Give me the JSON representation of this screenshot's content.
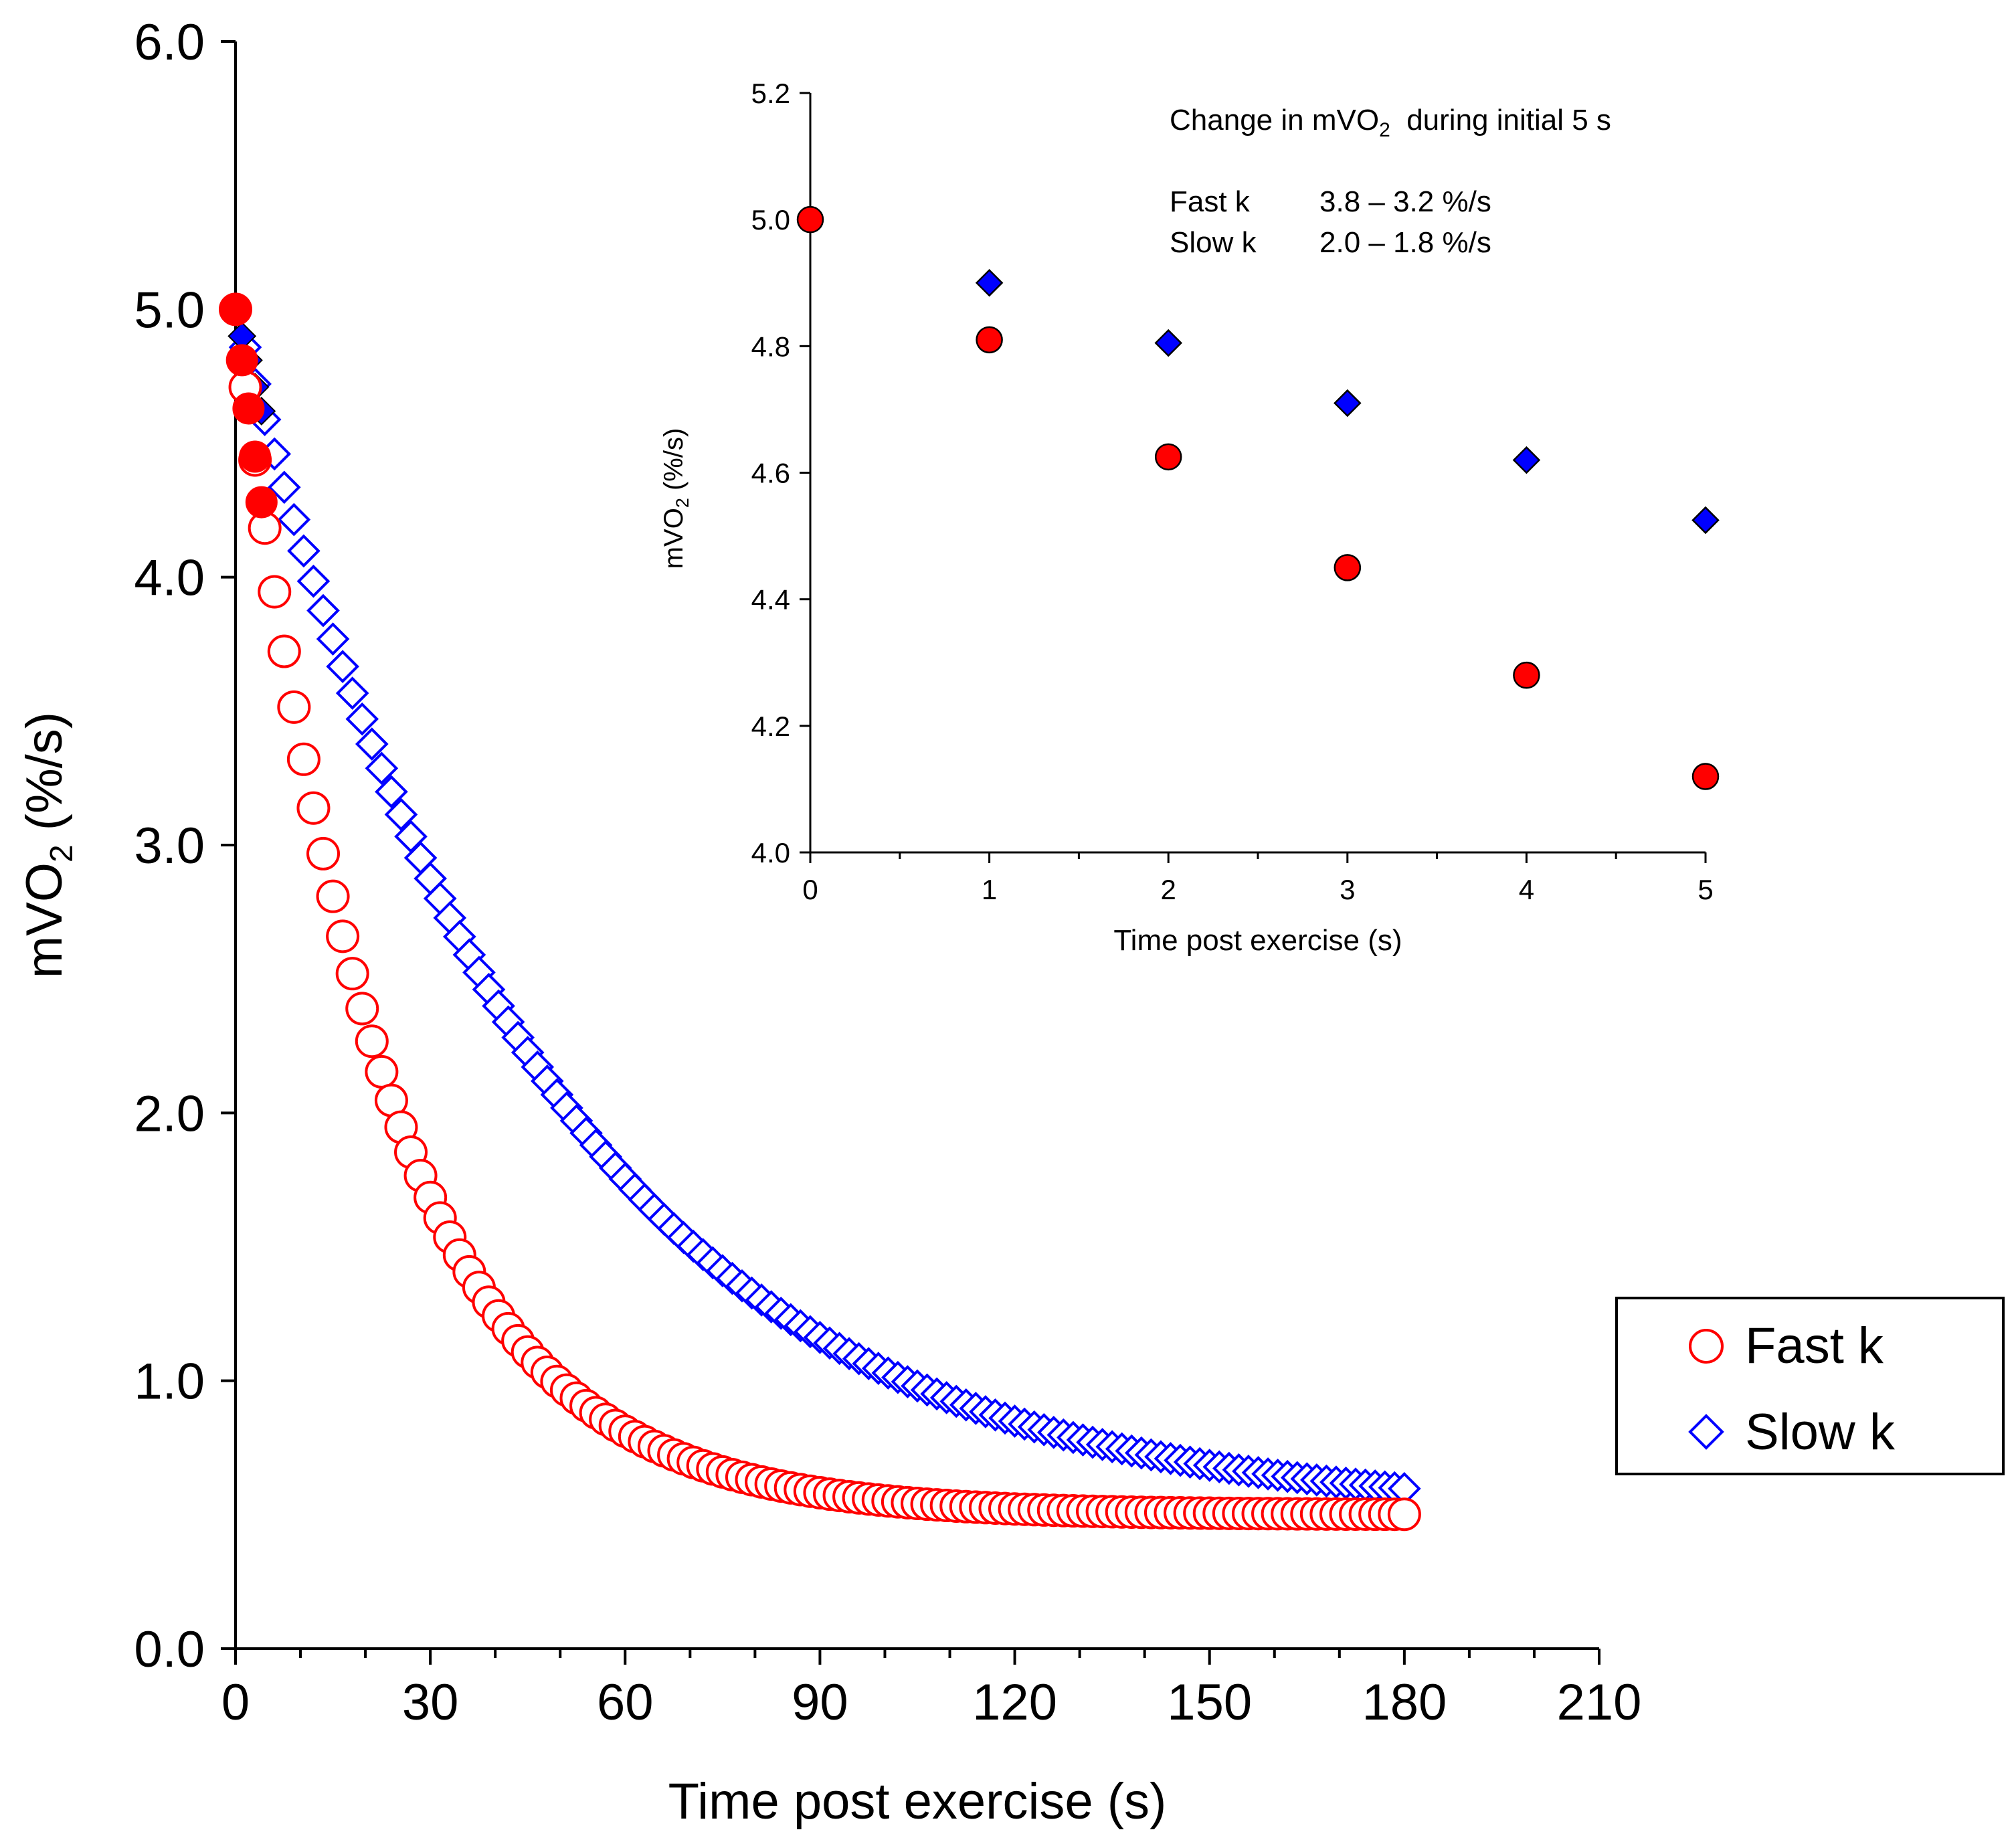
{
  "chart_data": [
    {
      "type": "scatter",
      "id": "main",
      "xlabel": "Time post exercise (s)",
      "ylabel": {
        "base": "mVO",
        "sub": "2",
        "tail": " (%/s)"
      },
      "xlim": [
        0,
        210
      ],
      "ylim": [
        0,
        6
      ],
      "xticks": [
        0,
        30,
        60,
        90,
        120,
        150,
        180,
        210
      ],
      "xtick_labels": [
        "0",
        "30",
        "60",
        "90",
        "120",
        "150",
        "180",
        "210"
      ],
      "yticks": [
        0,
        1,
        2,
        3,
        4,
        5,
        6
      ],
      "ytick_labels": [
        "0.0",
        "1.0",
        "2.0",
        "3.0",
        "4.0",
        "5.0",
        "6.0"
      ],
      "x_minor_step": 10,
      "series": [
        {
          "name": "Fast k",
          "marker": "circle",
          "color": "#ff0000",
          "model": {
            "baseline": 0.5,
            "amplitude": 4.5,
            "k_per_s": 0.0445
          },
          "x": {
            "start": 0,
            "end": 180,
            "step": 1.5
          },
          "filled_initial": [
            [
              0,
              5.0
            ],
            [
              1,
              4.81
            ],
            [
              2,
              4.63
            ],
            [
              3,
              4.45
            ],
            [
              4,
              4.28
            ]
          ]
        },
        {
          "name": "Slow k",
          "marker": "diamond",
          "color": "#0000ff",
          "model": {
            "baseline": 0.5,
            "amplitude": 4.5,
            "k_per_s": 0.0213
          },
          "x": {
            "start": 0,
            "end": 180,
            "step": 1.5
          },
          "filled_initial": [
            [
              0,
              5.0
            ],
            [
              1,
              4.9
            ],
            [
              2,
              4.81
            ],
            [
              3,
              4.71
            ],
            [
              4,
              4.62
            ]
          ]
        }
      ],
      "legend": {
        "position": "right",
        "entries": [
          "Fast k",
          "Slow k"
        ]
      }
    },
    {
      "type": "scatter",
      "id": "inset",
      "title": {
        "base": "Change in mVO",
        "sub": "2",
        "tail": "  during initial 5 s"
      },
      "annotations": [
        {
          "label": "Fast k",
          "value": "3.8 – 3.2 %/s"
        },
        {
          "label": "Slow k",
          "value": "2.0 – 1.8 %/s"
        }
      ],
      "xlabel": "Time post exercise (s)",
      "ylabel": {
        "base": "mVO",
        "sub": "2",
        "tail": " (%/s)"
      },
      "xlim": [
        0,
        5
      ],
      "ylim": [
        4.0,
        5.2
      ],
      "xticks": [
        0,
        1,
        2,
        3,
        4,
        5
      ],
      "xtick_labels": [
        "0",
        "1",
        "2",
        "3",
        "4",
        "5"
      ],
      "yticks": [
        4.0,
        4.2,
        4.4,
        4.6,
        4.8,
        5.0,
        5.2
      ],
      "ytick_labels": [
        "4.0",
        "4.2",
        "4.4",
        "4.6",
        "4.8",
        "5.0",
        "5.2"
      ],
      "series": [
        {
          "name": "Fast k",
          "marker": "circle",
          "fill": "#ff0000",
          "x": [
            0,
            1,
            2,
            3,
            4,
            5
          ],
          "y": [
            5.0,
            4.81,
            4.625,
            4.45,
            4.28,
            4.12
          ]
        },
        {
          "name": "Slow k",
          "marker": "diamond",
          "fill": "#0000ff",
          "x": [
            1,
            2,
            3,
            4,
            5
          ],
          "y": [
            4.9,
            4.805,
            4.71,
            4.62,
            4.525
          ]
        }
      ]
    }
  ]
}
